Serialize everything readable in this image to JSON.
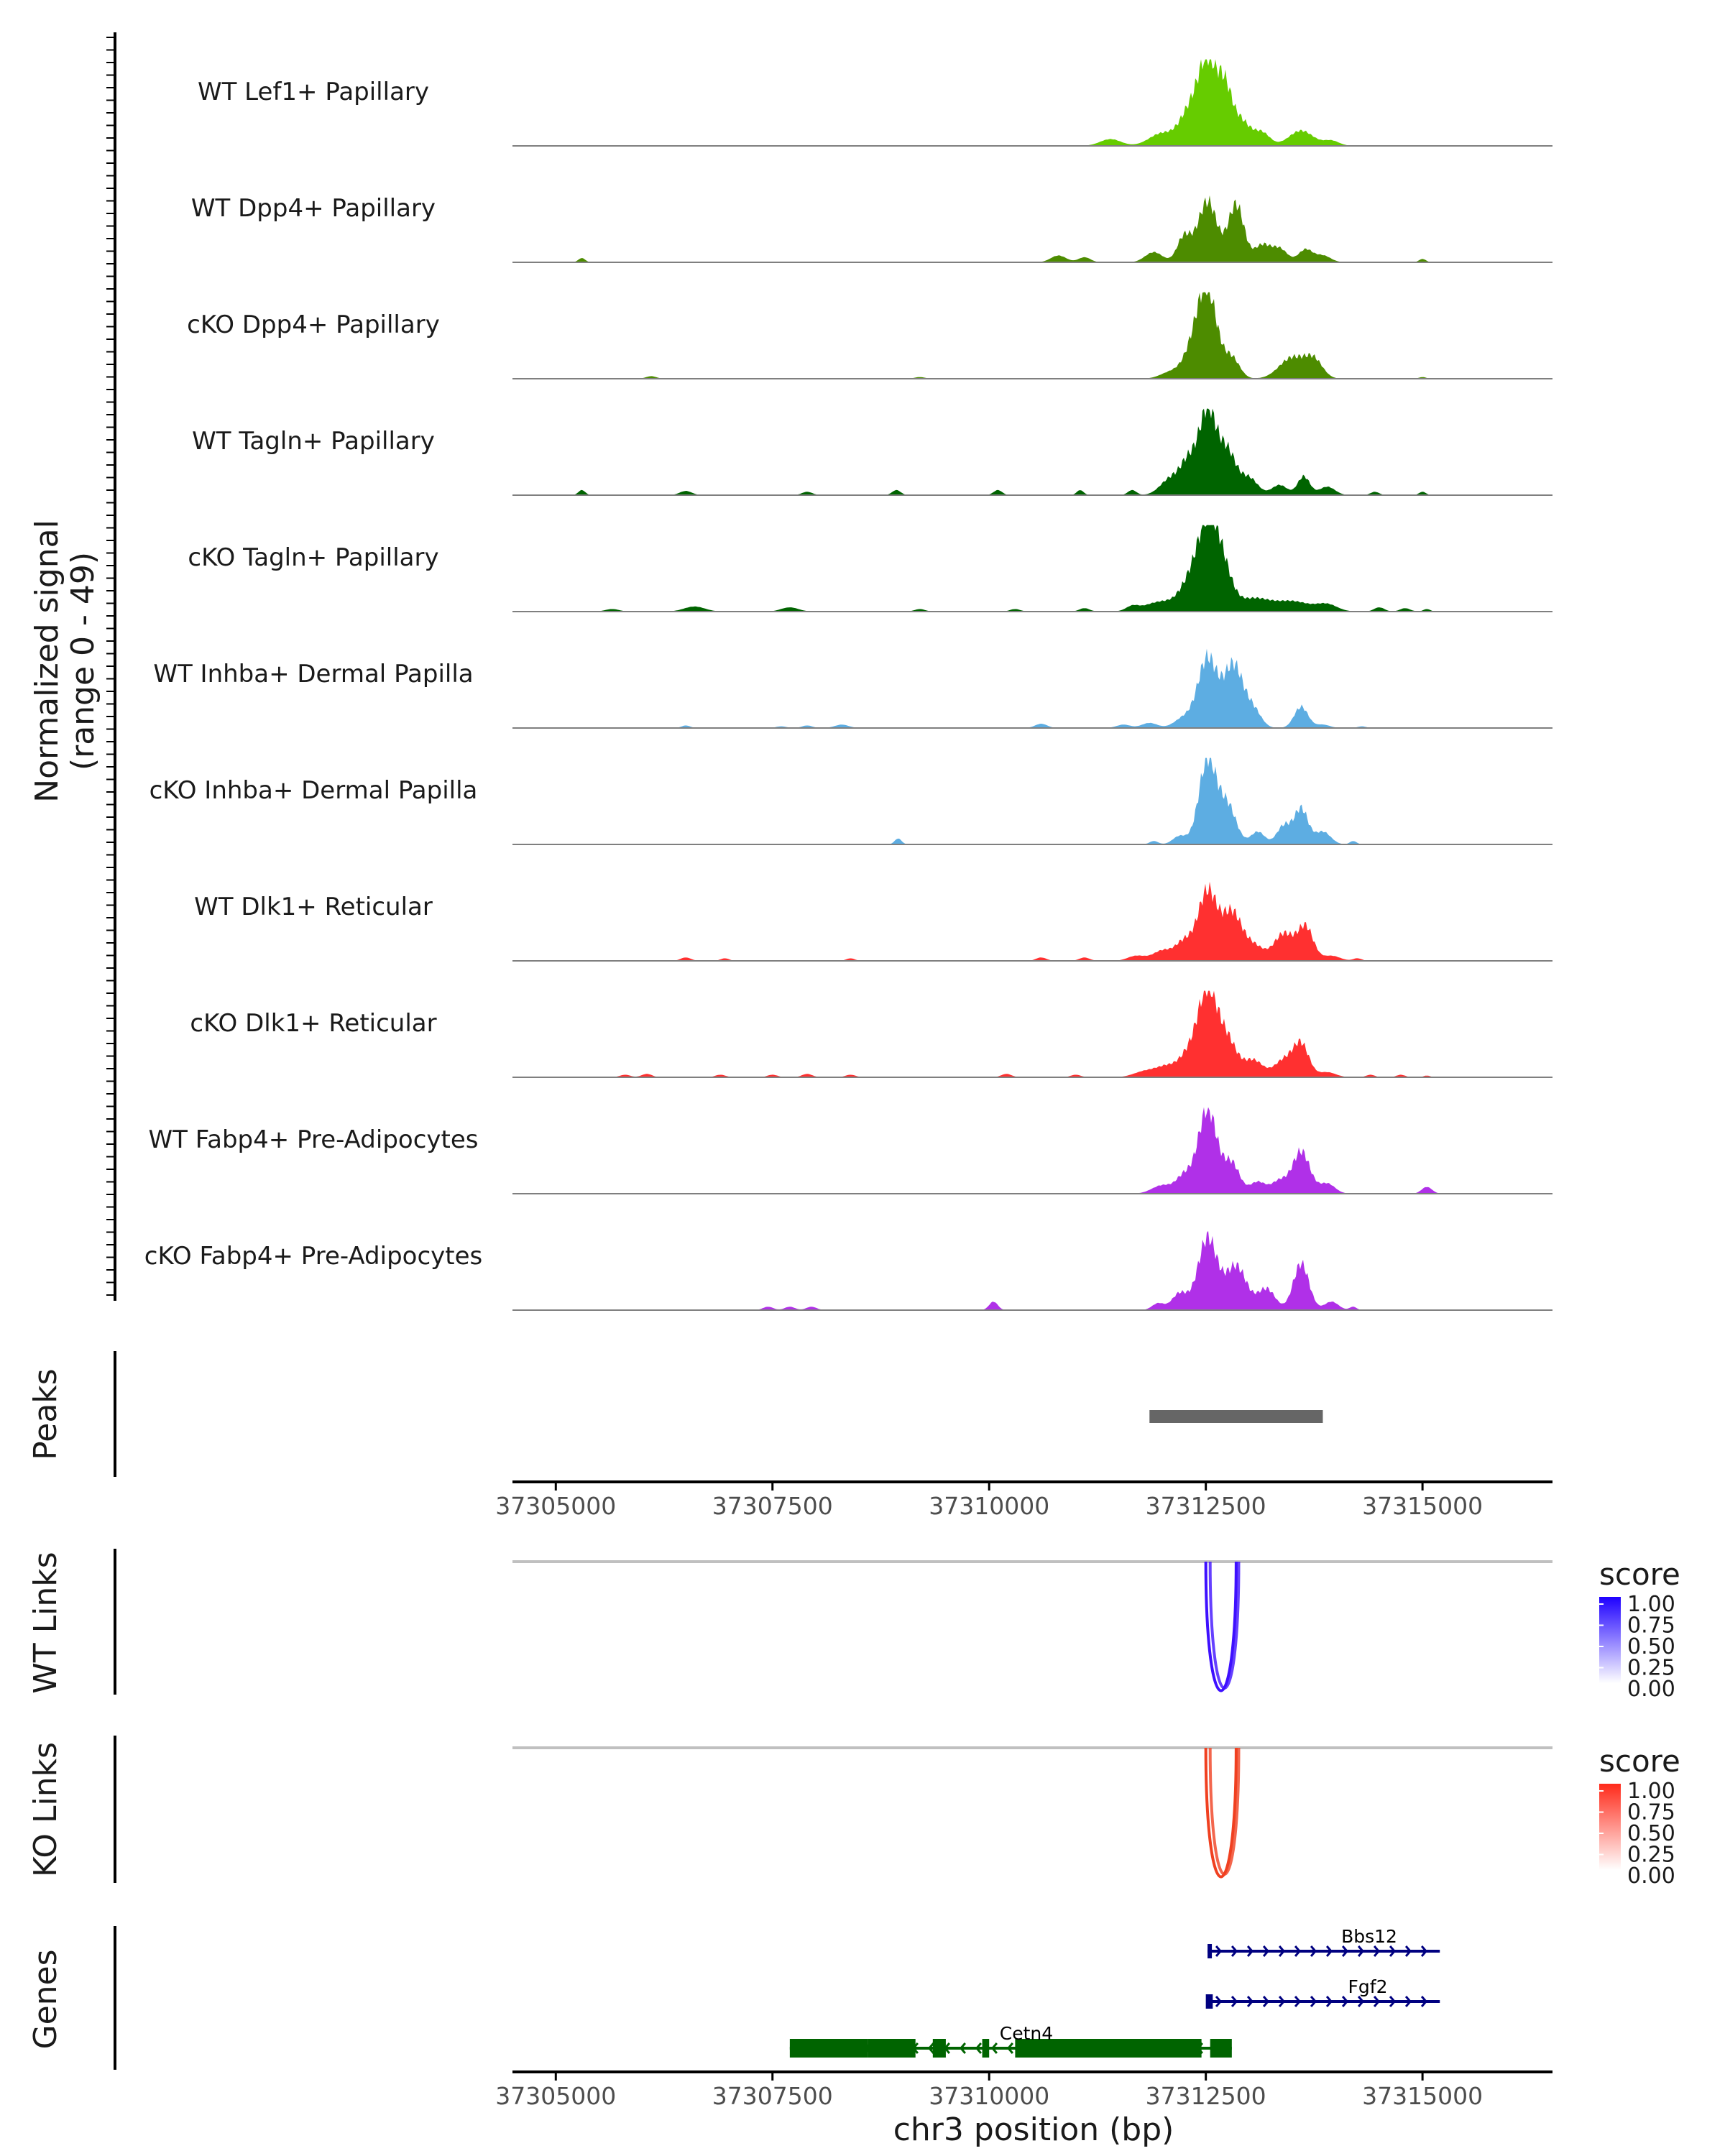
{
  "chart_data": {
    "type": "area",
    "region": {
      "chrom": "chr3",
      "start": 37304500,
      "end": 37316500
    },
    "coverage": {
      "ylabel": "Normalized signal",
      "ylabel_range": "(range 0 - 49)",
      "ylim": [
        0,
        49
      ],
      "tracks": [
        {
          "name": "WT Lef1+ Papillary",
          "color": "#66CC00",
          "peaks": [
            [
              37311400,
              0.08,
              120
            ],
            [
              37312000,
              0.15,
              150
            ],
            [
              37312300,
              0.35,
              110
            ],
            [
              37312520,
              1.0,
              110
            ],
            [
              37312720,
              0.55,
              80
            ],
            [
              37312900,
              0.3,
              110
            ],
            [
              37313150,
              0.15,
              90
            ],
            [
              37313600,
              0.18,
              140
            ],
            [
              37313950,
              0.06,
              90
            ]
          ]
        },
        {
          "name": "WT Dpp4+ Papillary",
          "color": "#4D8C00",
          "peaks": [
            [
              37305300,
              0.05,
              40
            ],
            [
              37310800,
              0.08,
              90
            ],
            [
              37311100,
              0.06,
              70
            ],
            [
              37311900,
              0.12,
              100
            ],
            [
              37312250,
              0.3,
              80
            ],
            [
              37312520,
              0.72,
              110
            ],
            [
              37312850,
              0.68,
              90
            ],
            [
              37313150,
              0.2,
              90
            ],
            [
              37313350,
              0.16,
              90
            ],
            [
              37313650,
              0.15,
              80
            ],
            [
              37313850,
              0.08,
              90
            ],
            [
              37315000,
              0.04,
              40
            ]
          ]
        },
        {
          "name": "cKO Dpp4+ Papillary",
          "color": "#4D8C00",
          "peaks": [
            [
              37306100,
              0.03,
              60
            ],
            [
              37309200,
              0.02,
              60
            ],
            [
              37312100,
              0.08,
              120
            ],
            [
              37312350,
              0.3,
              110
            ],
            [
              37312520,
              1.0,
              110
            ],
            [
              37312800,
              0.24,
              90
            ],
            [
              37313500,
              0.25,
              150
            ],
            [
              37313750,
              0.2,
              100
            ],
            [
              37315000,
              0.02,
              40
            ]
          ]
        },
        {
          "name": "WT Tagln+ Papillary",
          "color": "#006400",
          "peaks": [
            [
              37305300,
              0.06,
              40
            ],
            [
              37306500,
              0.05,
              70
            ],
            [
              37307900,
              0.04,
              60
            ],
            [
              37308930,
              0.06,
              50
            ],
            [
              37310100,
              0.06,
              50
            ],
            [
              37311050,
              0.06,
              40
            ],
            [
              37311650,
              0.06,
              50
            ],
            [
              37312100,
              0.2,
              120
            ],
            [
              37312300,
              0.35,
              90
            ],
            [
              37312520,
              1.0,
              100
            ],
            [
              37312750,
              0.5,
              100
            ],
            [
              37313000,
              0.2,
              100
            ],
            [
              37313350,
              0.12,
              90
            ],
            [
              37313630,
              0.22,
              70
            ],
            [
              37313900,
              0.1,
              90
            ],
            [
              37314450,
              0.04,
              50
            ],
            [
              37315000,
              0.04,
              40
            ]
          ]
        },
        {
          "name": "cKO Tagln+ Papillary",
          "color": "#006400",
          "peaks": [
            [
              37305650,
              0.03,
              80
            ],
            [
              37306600,
              0.06,
              120
            ],
            [
              37307700,
              0.05,
              100
            ],
            [
              37309200,
              0.03,
              60
            ],
            [
              37310300,
              0.03,
              60
            ],
            [
              37311100,
              0.04,
              60
            ],
            [
              37311650,
              0.05,
              70
            ],
            [
              37312000,
              0.12,
              200
            ],
            [
              37312300,
              0.25,
              110
            ],
            [
              37312520,
              1.0,
              120
            ],
            [
              37312700,
              0.4,
              110
            ],
            [
              37313050,
              0.15,
              180
            ],
            [
              37313500,
              0.12,
              200
            ],
            [
              37313900,
              0.08,
              120
            ],
            [
              37314500,
              0.05,
              60
            ],
            [
              37314800,
              0.04,
              60
            ],
            [
              37315050,
              0.03,
              40
            ]
          ]
        },
        {
          "name": "WT Inhba+ Dermal Papilla",
          "color": "#5DADE2",
          "peaks": [
            [
              37306500,
              0.03,
              50
            ],
            [
              37307600,
              0.02,
              60
            ],
            [
              37307900,
              0.03,
              60
            ],
            [
              37308300,
              0.04,
              80
            ],
            [
              37310600,
              0.05,
              70
            ],
            [
              37311550,
              0.04,
              80
            ],
            [
              37311850,
              0.06,
              90
            ],
            [
              37312250,
              0.12,
              110
            ],
            [
              37312520,
              0.82,
              110
            ],
            [
              37312820,
              0.74,
              110
            ],
            [
              37313050,
              0.2,
              90
            ],
            [
              37313600,
              0.25,
              80
            ],
            [
              37313850,
              0.04,
              80
            ],
            [
              37314300,
              0.02,
              50
            ]
          ]
        },
        {
          "name": "cKO Inhba+ Dermal Papilla",
          "color": "#5DADE2",
          "peaks": [
            [
              37308950,
              0.07,
              40
            ],
            [
              37311900,
              0.04,
              50
            ],
            [
              37312200,
              0.1,
              80
            ],
            [
              37312520,
              1.0,
              100
            ],
            [
              37312750,
              0.45,
              100
            ],
            [
              37313100,
              0.15,
              80
            ],
            [
              37313400,
              0.22,
              80
            ],
            [
              37313600,
              0.42,
              80
            ],
            [
              37313850,
              0.15,
              90
            ],
            [
              37314200,
              0.04,
              40
            ]
          ]
        },
        {
          "name": "WT Dlk1+ Reticular",
          "color": "#FF3030",
          "peaks": [
            [
              37306500,
              0.04,
              60
            ],
            [
              37306950,
              0.03,
              50
            ],
            [
              37308400,
              0.03,
              50
            ],
            [
              37310600,
              0.04,
              60
            ],
            [
              37311100,
              0.04,
              60
            ],
            [
              37311700,
              0.06,
              100
            ],
            [
              37312000,
              0.12,
              110
            ],
            [
              37312250,
              0.22,
              100
            ],
            [
              37312520,
              0.82,
              110
            ],
            [
              37312800,
              0.55,
              110
            ],
            [
              37313050,
              0.18,
              120
            ],
            [
              37313400,
              0.32,
              110
            ],
            [
              37313650,
              0.4,
              90
            ],
            [
              37313950,
              0.06,
              100
            ],
            [
              37314250,
              0.03,
              50
            ]
          ]
        },
        {
          "name": "cKO Dlk1+ Reticular",
          "color": "#FF3030",
          "peaks": [
            [
              37305800,
              0.03,
              60
            ],
            [
              37306050,
              0.04,
              60
            ],
            [
              37306900,
              0.03,
              60
            ],
            [
              37307500,
              0.03,
              60
            ],
            [
              37307900,
              0.04,
              60
            ],
            [
              37308400,
              0.03,
              60
            ],
            [
              37310200,
              0.04,
              60
            ],
            [
              37311000,
              0.03,
              60
            ],
            [
              37311800,
              0.07,
              130
            ],
            [
              37312050,
              0.12,
              120
            ],
            [
              37312300,
              0.25,
              110
            ],
            [
              37312520,
              1.0,
              110
            ],
            [
              37312750,
              0.42,
              110
            ],
            [
              37313050,
              0.2,
              110
            ],
            [
              37313400,
              0.2,
              110
            ],
            [
              37313600,
              0.38,
              90
            ],
            [
              37313900,
              0.06,
              100
            ],
            [
              37314400,
              0.03,
              50
            ],
            [
              37314750,
              0.03,
              50
            ],
            [
              37315050,
              0.02,
              40
            ]
          ]
        },
        {
          "name": "WT Fabp4+ Pre-Adipocytes",
          "color": "#B030E8",
          "peaks": [
            [
              37312000,
              0.1,
              120
            ],
            [
              37312250,
              0.2,
              90
            ],
            [
              37312520,
              1.0,
              110
            ],
            [
              37312800,
              0.35,
              90
            ],
            [
              37313100,
              0.14,
              90
            ],
            [
              37313350,
              0.15,
              90
            ],
            [
              37313600,
              0.5,
              100
            ],
            [
              37313900,
              0.12,
              90
            ],
            [
              37315050,
              0.08,
              60
            ]
          ]
        },
        {
          "name": "cKO Fabp4+ Pre-Adipocytes",
          "color": "#B030E8",
          "peaks": [
            [
              37307450,
              0.04,
              60
            ],
            [
              37307700,
              0.04,
              60
            ],
            [
              37307950,
              0.04,
              60
            ],
            [
              37310050,
              0.1,
              50
            ],
            [
              37311950,
              0.08,
              70
            ],
            [
              37312200,
              0.2,
              90
            ],
            [
              37312520,
              0.85,
              110
            ],
            [
              37312850,
              0.52,
              120
            ],
            [
              37313200,
              0.25,
              100
            ],
            [
              37313600,
              0.55,
              90
            ],
            [
              37313950,
              0.1,
              80
            ],
            [
              37314200,
              0.04,
              40
            ]
          ]
        }
      ]
    },
    "peaks_track": {
      "label": "Peaks",
      "peaks": [
        [
          37311850,
          37313850
        ]
      ]
    },
    "x_axis": {
      "ticks": [
        37305000,
        37307500,
        37310000,
        37312500,
        37315000
      ]
    },
    "links": [
      {
        "label": "WT Links",
        "color": "#3E10FF",
        "arcs": [
          [
            37312500,
            37312850,
            0.85
          ],
          [
            37312550,
            37312880,
            0.7
          ]
        ],
        "legend": {
          "title": "score",
          "labels": [
            "1.00",
            "0.75",
            "0.50",
            "0.25",
            "0.00"
          ],
          "low": "#FFFFFF",
          "high": "#1E00FF"
        }
      },
      {
        "label": "KO Links",
        "color": "#F04020",
        "arcs": [
          [
            37312500,
            37312850,
            0.85
          ],
          [
            37312550,
            37312880,
            0.7
          ]
        ],
        "legend": {
          "title": "score",
          "labels": [
            "1.00",
            "0.75",
            "0.50",
            "0.25",
            "0.00"
          ],
          "low": "#FFFFFF",
          "high": "#FF2A1A"
        }
      }
    ],
    "genes": {
      "label": "Genes",
      "xlabel": "chr3 position (bp)",
      "items": [
        {
          "name": "Bbs12",
          "strand": "+",
          "start": 37312520,
          "end": 37315200,
          "color": "#000080",
          "exons": [
            [
              37312520,
              37312560
            ]
          ]
        },
        {
          "name": "Fgf2",
          "strand": "+",
          "start": 37312520,
          "end": 37315200,
          "color": "#000080",
          "exons": [
            [
              37312500,
              37312580
            ]
          ]
        },
        {
          "name": "Cetn4",
          "strand": "-",
          "start": 37307700,
          "end": 37312800,
          "color": "#006400",
          "exons": [
            [
              37307700,
              37308600
            ],
            [
              37308600,
              37309150
            ],
            [
              37309350,
              37309500
            ],
            [
              37309920,
              37310000
            ],
            [
              37310300,
              37312450
            ],
            [
              37312550,
              37312800
            ]
          ]
        }
      ]
    }
  }
}
